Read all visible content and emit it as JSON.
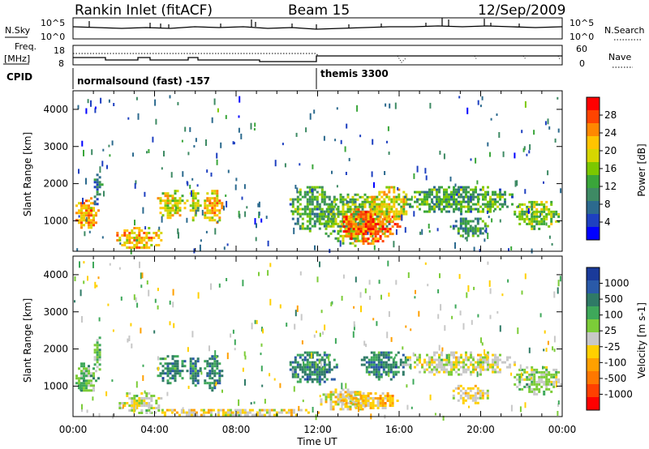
{
  "header": {
    "station": "Rankin Inlet (fitACF)",
    "beam": "Beam 15",
    "date": "12/Sep/2009"
  },
  "panels": {
    "nsky_label": "N.Sky",
    "nsky_ticks": [
      "10^5",
      "10^0"
    ],
    "nsearch_label": "N.Search",
    "nsearch_ticks": [
      "10^5",
      "10^0"
    ],
    "freq_label": [
      "Freq.",
      "[MHz]"
    ],
    "freq_ticks": [
      "18",
      "8"
    ],
    "nave_label": "Nave",
    "nave_ticks": [
      "60",
      "0"
    ],
    "cpid_label": "CPID",
    "cpid_modes": [
      {
        "label": "normalsound (fast) -157",
        "start": 0,
        "end": 12
      },
      {
        "label": "themis 3300",
        "start": 12,
        "end": 24
      }
    ]
  },
  "chart_data": [
    {
      "type": "heatmap",
      "name": "power",
      "xlabel": "Time UT",
      "ylabel": "Slant Range [km]",
      "xlim": [
        0,
        24
      ],
      "ylim": [
        180,
        4500
      ],
      "yticks": [
        1000,
        2000,
        3000,
        4000
      ],
      "colorbar": {
        "label": "Power [dB]",
        "ticks": [
          "28",
          "24",
          "20",
          "16",
          "12",
          "8",
          "4"
        ],
        "colors": [
          "#ff0000",
          "#ff4400",
          "#ff8800",
          "#ffc400",
          "#d6d600",
          "#7cc800",
          "#3aa63a",
          "#3e8a64",
          "#2c6a8e",
          "#1e40c0",
          "#0000ff"
        ]
      },
      "regions": [
        {
          "t0": 0.0,
          "t1": 1.2,
          "r0": 800,
          "r1": 1700,
          "level": 24
        },
        {
          "t0": 0.9,
          "t1": 1.4,
          "r0": 1400,
          "r1": 2400,
          "level": 8
        },
        {
          "t0": 2.0,
          "t1": 4.4,
          "r0": 250,
          "r1": 900,
          "level": 22
        },
        {
          "t0": 4.0,
          "t1": 5.6,
          "r0": 1100,
          "r1": 1900,
          "level": 20
        },
        {
          "t0": 5.6,
          "t1": 6.2,
          "r0": 1000,
          "r1": 1900,
          "level": 18
        },
        {
          "t0": 6.3,
          "t1": 7.3,
          "r0": 900,
          "r1": 1900,
          "level": 22
        },
        {
          "t0": 10.5,
          "t1": 13.0,
          "r0": 700,
          "r1": 2000,
          "level": 12
        },
        {
          "t0": 12.0,
          "t1": 15.5,
          "r0": 350,
          "r1": 1800,
          "level": 14
        },
        {
          "t0": 13.0,
          "t1": 16.0,
          "r0": 400,
          "r1": 1400,
          "level": 28
        },
        {
          "t0": 14.5,
          "t1": 16.5,
          "r0": 1000,
          "r1": 2000,
          "level": 20
        },
        {
          "t0": 16.0,
          "t1": 21.7,
          "r0": 1200,
          "r1": 2000,
          "level": 12
        },
        {
          "t0": 18.5,
          "t1": 20.4,
          "r0": 550,
          "r1": 1150,
          "level": 10
        },
        {
          "t0": 21.5,
          "t1": 24.0,
          "r0": 800,
          "r1": 1600,
          "level": 16
        }
      ]
    },
    {
      "type": "heatmap",
      "name": "velocity",
      "xlabel": "Time UT",
      "ylabel": "Slant Range [km]",
      "xlim": [
        0,
        24
      ],
      "ylim": [
        180,
        4500
      ],
      "yticks": [
        1000,
        2000,
        3000,
        4000
      ],
      "xticks": [
        "00:00",
        "04:00",
        "08:00",
        "12:00",
        "16:00",
        "20:00",
        "00:00"
      ],
      "colorbar": {
        "label": "Velocity [m s-1]",
        "ticks": [
          "1000",
          "500",
          "100",
          "25",
          "-25",
          "-100",
          "-500",
          "-1000"
        ],
        "colors": [
          "#1a3a9a",
          "#2a5aa8",
          "#2f7a66",
          "#3ea85a",
          "#7ccc38",
          "#c8c8c8",
          "#ffd000",
          "#ffa000",
          "#ff7800",
          "#ff4000",
          "#ff0000"
        ]
      },
      "regions": [
        {
          "t0": 0.0,
          "t1": 1.2,
          "r0": 800,
          "r1": 1700,
          "level": 300
        },
        {
          "t0": 0.9,
          "t1": 1.4,
          "r0": 1400,
          "r1": 2400,
          "level": 300
        },
        {
          "t0": 2.0,
          "t1": 4.4,
          "r0": 250,
          "r1": 900,
          "level": 50
        },
        {
          "t0": 3.5,
          "t1": 12.0,
          "r0": 200,
          "r1": 450,
          "level": -150
        },
        {
          "t0": 4.0,
          "t1": 5.6,
          "r0": 1100,
          "r1": 1900,
          "level": 700
        },
        {
          "t0": 5.6,
          "t1": 6.2,
          "r0": 1000,
          "r1": 1900,
          "level": 700
        },
        {
          "t0": 6.3,
          "t1": 7.3,
          "r0": 900,
          "r1": 1900,
          "level": 700
        },
        {
          "t0": 10.5,
          "t1": 13.0,
          "r0": 1000,
          "r1": 2000,
          "level": 700
        },
        {
          "t0": 12.0,
          "t1": 14.5,
          "r0": 300,
          "r1": 1000,
          "level": -60
        },
        {
          "t0": 13.0,
          "t1": 16.0,
          "r0": 400,
          "r1": 900,
          "level": -300
        },
        {
          "t0": 14.0,
          "t1": 16.5,
          "r0": 1200,
          "r1": 2000,
          "level": 700
        },
        {
          "t0": 16.0,
          "t1": 21.7,
          "r0": 1300,
          "r1": 2000,
          "level": 0
        },
        {
          "t0": 18.5,
          "t1": 20.4,
          "r0": 550,
          "r1": 1100,
          "level": -120
        },
        {
          "t0": 21.5,
          "t1": 24.0,
          "r0": 800,
          "r1": 1600,
          "level": 200
        }
      ]
    }
  ]
}
